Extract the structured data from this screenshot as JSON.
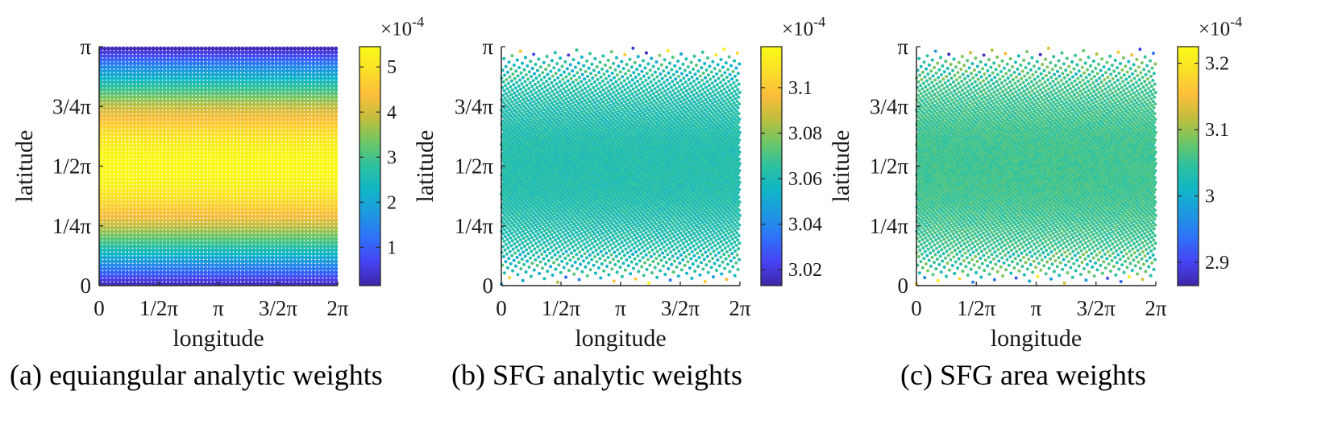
{
  "figure": {
    "colors": {
      "axis": "#262626",
      "text": "#1a1a1a",
      "background": "#ffffff"
    },
    "colormap": [
      "#3e26a8",
      "#4743f4",
      "#2f71f9",
      "#1e98e0",
      "#10b5c7",
      "#2cc19f",
      "#6dc766",
      "#c2bd3d",
      "#fcbe3b",
      "#fadf29",
      "#f9fb15"
    ]
  },
  "chart_data": [
    {
      "id": "a",
      "type": "scatter",
      "title": "",
      "caption": "(a) equiangular analytic weights",
      "xlabel": "longitude",
      "ylabel": "latitude",
      "xlim": [
        0,
        6.2832
      ],
      "ylim": [
        0,
        3.1416
      ],
      "xticks": [
        0,
        1.5708,
        3.1416,
        4.7124,
        6.2832
      ],
      "xtick_labels": [
        "0",
        "1/2π",
        "π",
        "3/2π",
        "2π"
      ],
      "yticks": [
        0,
        0.7854,
        1.5708,
        2.3562,
        3.1416
      ],
      "ytick_labels": [
        "0",
        "1/4π",
        "1/2π",
        "3/4π",
        "π"
      ],
      "grid": "equiangular",
      "n_lon": 64,
      "n_lat": 64,
      "value_formula": "weight ∝ sin(latitude), peak at latitude 1/2π",
      "value_range": [
        0.15,
        5.4
      ],
      "colorbar": {
        "exponent": "×10",
        "exponent_power": "-4",
        "clim": [
          0.15,
          5.45
        ],
        "ticks": [
          1,
          2,
          3,
          4,
          5
        ],
        "tick_labels": [
          "1",
          "2",
          "3",
          "4",
          "5"
        ]
      }
    },
    {
      "id": "b",
      "type": "scatter",
      "title": "",
      "caption": "(b) SFG  analytic weights",
      "xlabel": "longitude",
      "ylabel": "latitude",
      "xlim": [
        0,
        6.2832
      ],
      "ylim": [
        0,
        3.1416
      ],
      "xticks": [
        0,
        1.5708,
        3.1416,
        4.7124,
        6.2832
      ],
      "xtick_labels": [
        "0",
        "1/2π",
        "π",
        "3/2π",
        "2π"
      ],
      "yticks": [
        0,
        0.7854,
        1.5708,
        2.3562,
        3.1416
      ],
      "ytick_labels": [
        "0",
        "1/4π",
        "1/2π",
        "3/4π",
        "π"
      ],
      "grid": "spherical-fibonacci",
      "n_points": 5000,
      "value_range": [
        3.015,
        3.115
      ],
      "typical_value": 3.062,
      "colorbar": {
        "exponent": "×10",
        "exponent_power": "-4",
        "clim": [
          3.013,
          3.118
        ],
        "ticks": [
          3.02,
          3.04,
          3.06,
          3.08,
          3.1
        ],
        "tick_labels": [
          "3.02",
          "3.04",
          "3.06",
          "3.08",
          "3.1"
        ]
      }
    },
    {
      "id": "c",
      "type": "scatter",
      "title": "",
      "caption": "(c) SFG area weights",
      "xlabel": "longitude",
      "ylabel": "latitude",
      "xlim": [
        0,
        6.2832
      ],
      "ylim": [
        0,
        3.1416
      ],
      "xticks": [
        0,
        1.5708,
        3.1416,
        4.7124,
        6.2832
      ],
      "xtick_labels": [
        "0",
        "1/2π",
        "π",
        "3/2π",
        "2π"
      ],
      "yticks": [
        0,
        0.7854,
        1.5708,
        2.3562,
        3.1416
      ],
      "ytick_labels": [
        "0",
        "1/4π",
        "1/2π",
        "3/4π",
        "π"
      ],
      "grid": "spherical-fibonacci",
      "n_points": 5000,
      "value_range": [
        2.87,
        3.22
      ],
      "typical_value": 3.055,
      "colorbar": {
        "exponent": "×10",
        "exponent_power": "-4",
        "clim": [
          2.865,
          3.225
        ],
        "ticks": [
          2.9,
          3,
          3.1,
          3.2
        ],
        "tick_labels": [
          "2.9",
          "3",
          "3.1",
          "3.2"
        ]
      }
    }
  ]
}
